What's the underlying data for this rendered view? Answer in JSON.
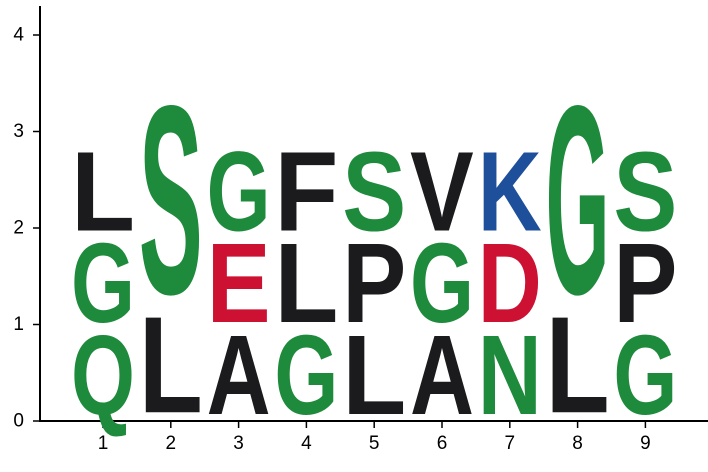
{
  "chart_data": {
    "type": "sequence-logo",
    "title": "",
    "xlabel": "",
    "ylabel": "",
    "ylim": [
      0,
      4.3
    ],
    "y_ticks": [
      "0",
      "1",
      "2",
      "3",
      "4"
    ],
    "x_ticks": [
      "1",
      "2",
      "3",
      "4",
      "5",
      "6",
      "7",
      "8",
      "9"
    ],
    "grid": false,
    "colors": {
      "black": "#1b1b1d",
      "green": "#1e8a3c",
      "red": "#cc1133",
      "blue": "#1e4f9a"
    },
    "positions": [
      {
        "position": 1,
        "stack": [
          {
            "letter": "Q",
            "height": 0.95,
            "color": "green"
          },
          {
            "letter": "G",
            "height": 0.95,
            "color": "green"
          },
          {
            "letter": "L",
            "height": 0.95,
            "color": "black"
          }
        ]
      },
      {
        "position": 2,
        "stack": [
          {
            "letter": "L",
            "height": 1.15,
            "color": "black"
          },
          {
            "letter": "S",
            "height": 2.25,
            "color": "green"
          }
        ]
      },
      {
        "position": 3,
        "stack": [
          {
            "letter": "A",
            "height": 0.95,
            "color": "black"
          },
          {
            "letter": "E",
            "height": 0.95,
            "color": "red"
          },
          {
            "letter": "G",
            "height": 0.95,
            "color": "green"
          }
        ]
      },
      {
        "position": 4,
        "stack": [
          {
            "letter": "G",
            "height": 0.95,
            "color": "green"
          },
          {
            "letter": "L",
            "height": 0.95,
            "color": "black"
          },
          {
            "letter": "F",
            "height": 0.95,
            "color": "black"
          }
        ]
      },
      {
        "position": 5,
        "stack": [
          {
            "letter": "L",
            "height": 0.95,
            "color": "black"
          },
          {
            "letter": "P",
            "height": 0.95,
            "color": "black"
          },
          {
            "letter": "S",
            "height": 0.95,
            "color": "green"
          }
        ]
      },
      {
        "position": 6,
        "stack": [
          {
            "letter": "A",
            "height": 0.95,
            "color": "black"
          },
          {
            "letter": "G",
            "height": 0.95,
            "color": "green"
          },
          {
            "letter": "V",
            "height": 0.95,
            "color": "black"
          }
        ]
      },
      {
        "position": 7,
        "stack": [
          {
            "letter": "N",
            "height": 0.95,
            "color": "green"
          },
          {
            "letter": "D",
            "height": 0.95,
            "color": "red"
          },
          {
            "letter": "K",
            "height": 0.95,
            "color": "blue"
          }
        ]
      },
      {
        "position": 8,
        "stack": [
          {
            "letter": "L",
            "height": 1.15,
            "color": "black"
          },
          {
            "letter": "G",
            "height": 2.25,
            "color": "green"
          }
        ]
      },
      {
        "position": 9,
        "stack": [
          {
            "letter": "G",
            "height": 0.95,
            "color": "green"
          },
          {
            "letter": "P",
            "height": 0.95,
            "color": "black"
          },
          {
            "letter": "S",
            "height": 0.95,
            "color": "green"
          }
        ]
      }
    ]
  }
}
